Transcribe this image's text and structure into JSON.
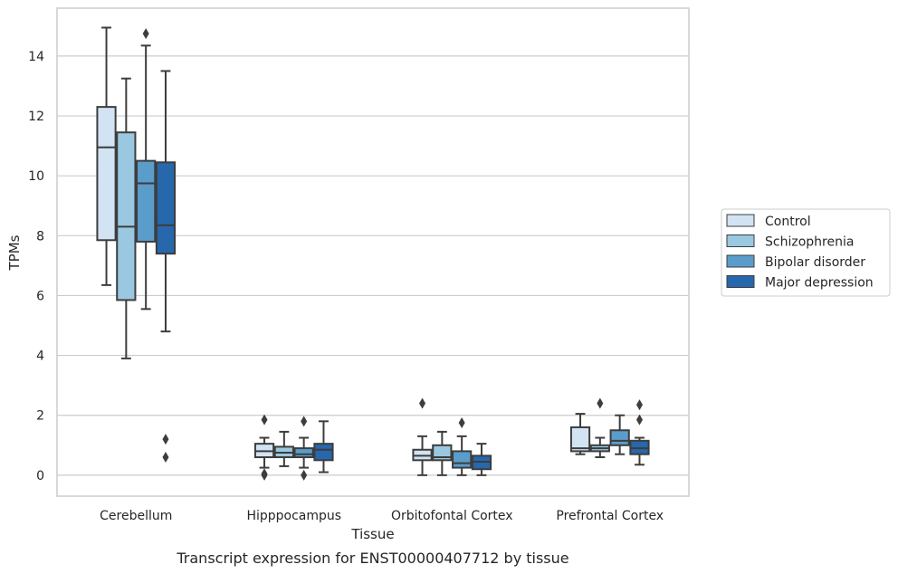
{
  "caption": "Transcript expression for ENST00000407712 by tissue",
  "chart_data": {
    "type": "box",
    "xlabel": "Tissue",
    "ylabel": "TPMs",
    "ylim": [
      -0.7,
      15.6
    ],
    "yticks": [
      0,
      2,
      4,
      6,
      8,
      10,
      12,
      14
    ],
    "grid": "horizontal",
    "legend_position": "right",
    "categories": [
      "Cerebellum",
      "Hipppocampus",
      "Orbitofontal Cortex",
      "Prefrontal Cortex"
    ],
    "series": [
      {
        "name": "Control",
        "color": "#d2e3f3",
        "boxes": [
          {
            "whisker_low": 6.35,
            "q1": 7.85,
            "median": 10.95,
            "q3": 12.3,
            "whisker_high": 14.95,
            "outliers": []
          },
          {
            "whisker_low": 0.25,
            "q1": 0.6,
            "median": 0.8,
            "q3": 1.05,
            "whisker_high": 1.25,
            "outliers": [
              1.85,
              0.05,
              0.0
            ]
          },
          {
            "whisker_low": 0.0,
            "q1": 0.5,
            "median": 0.65,
            "q3": 0.85,
            "whisker_high": 1.3,
            "outliers": [
              2.4
            ]
          },
          {
            "whisker_low": 0.7,
            "q1": 0.8,
            "median": 0.9,
            "q3": 1.6,
            "whisker_high": 2.05,
            "outliers": []
          }
        ]
      },
      {
        "name": "Schizophrenia",
        "color": "#9ac8e0",
        "boxes": [
          {
            "whisker_low": 3.9,
            "q1": 5.85,
            "median": 8.3,
            "q3": 11.45,
            "whisker_high": 13.25,
            "outliers": []
          },
          {
            "whisker_low": 0.3,
            "q1": 0.6,
            "median": 0.75,
            "q3": 0.95,
            "whisker_high": 1.45,
            "outliers": []
          },
          {
            "whisker_low": 0.0,
            "q1": 0.5,
            "median": 0.6,
            "q3": 1.0,
            "whisker_high": 1.45,
            "outliers": []
          },
          {
            "whisker_low": 0.6,
            "q1": 0.8,
            "median": 0.9,
            "q3": 1.0,
            "whisker_high": 1.25,
            "outliers": [
              2.4
            ]
          }
        ]
      },
      {
        "name": "Bipolar disorder",
        "color": "#5a9dcb",
        "boxes": [
          {
            "whisker_low": 5.55,
            "q1": 7.8,
            "median": 9.75,
            "q3": 10.5,
            "whisker_high": 14.35,
            "outliers": [
              14.75
            ]
          },
          {
            "whisker_low": 0.25,
            "q1": 0.6,
            "median": 0.7,
            "q3": 0.9,
            "whisker_high": 1.25,
            "outliers": [
              1.8,
              0.0
            ]
          },
          {
            "whisker_low": 0.0,
            "q1": 0.25,
            "median": 0.4,
            "q3": 0.8,
            "whisker_high": 1.3,
            "outliers": [
              1.75
            ]
          },
          {
            "whisker_low": 0.7,
            "q1": 1.0,
            "median": 1.15,
            "q3": 1.5,
            "whisker_high": 2.0,
            "outliers": []
          }
        ]
      },
      {
        "name": "Major depression",
        "color": "#2767ac",
        "boxes": [
          {
            "whisker_low": 4.8,
            "q1": 7.4,
            "median": 8.35,
            "q3": 10.45,
            "whisker_high": 13.5,
            "outliers": [
              1.2,
              0.6
            ]
          },
          {
            "whisker_low": 0.1,
            "q1": 0.5,
            "median": 0.85,
            "q3": 1.05,
            "whisker_high": 1.8,
            "outliers": []
          },
          {
            "whisker_low": 0.0,
            "q1": 0.2,
            "median": 0.45,
            "q3": 0.65,
            "whisker_high": 1.05,
            "outliers": []
          },
          {
            "whisker_low": 0.35,
            "q1": 0.7,
            "median": 0.9,
            "q3": 1.15,
            "whisker_high": 1.25,
            "outliers": [
              2.35,
              1.85
            ]
          }
        ]
      }
    ]
  }
}
